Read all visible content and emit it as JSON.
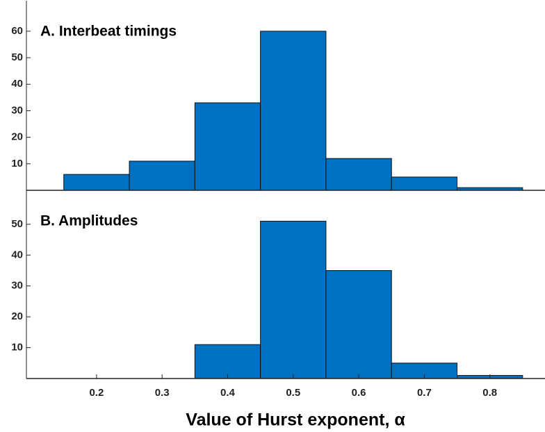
{
  "chart_data": [
    {
      "type": "histogram",
      "title": "A. Interbeat timings",
      "bins": [
        0.15,
        0.25,
        0.35,
        0.45,
        0.55,
        0.65,
        0.75,
        0.85
      ],
      "values": [
        6,
        11,
        33,
        60,
        12,
        5,
        1
      ],
      "color": "#0070c0",
      "xlim": [
        0.093,
        0.882
      ],
      "ylim": [
        0,
        71.5
      ],
      "yticks": [
        10,
        20,
        30,
        40,
        50,
        60
      ]
    },
    {
      "type": "histogram",
      "title": "B. Amplitudes",
      "xlabel": "Value of Hurst exponent, α",
      "bins": [
        0.15,
        0.25,
        0.35,
        0.45,
        0.55,
        0.65,
        0.75,
        0.85
      ],
      "values": [
        0,
        0,
        11,
        51,
        35,
        5,
        1
      ],
      "color": "#0070c0",
      "xlim": [
        0.093,
        0.882
      ],
      "ylim": [
        0,
        61
      ],
      "yticks": [
        10,
        20,
        30,
        40,
        50
      ],
      "xticks": [
        0.2,
        0.3,
        0.4,
        0.5,
        0.6,
        0.7,
        0.8
      ]
    }
  ]
}
